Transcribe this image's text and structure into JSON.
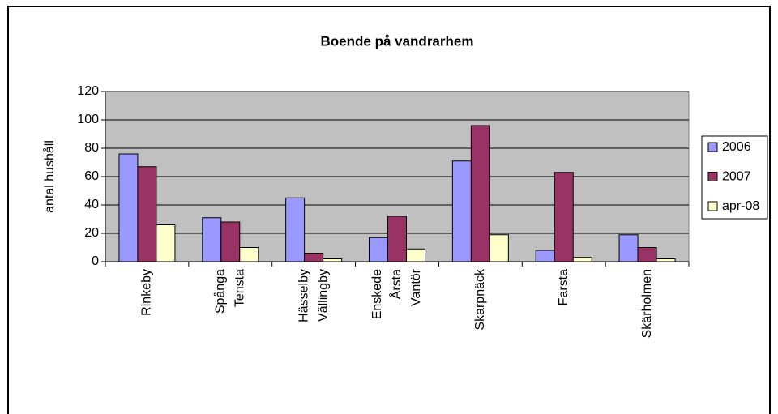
{
  "chart_data": {
    "type": "bar",
    "title": "Boende på vandrarhem",
    "y_label": "antal hushåll",
    "categories": [
      [
        "Rinkeby"
      ],
      [
        "Spånga",
        "Tensta"
      ],
      [
        "Hässelby",
        "Vällingby"
      ],
      [
        "Enskede",
        "Årsta",
        "Vantör"
      ],
      [
        "Skarpnäck"
      ],
      [
        "Farsta"
      ],
      [
        "Skärholmen"
      ]
    ],
    "series": [
      {
        "name": "2006",
        "color": "#9999ff",
        "values": [
          76,
          31,
          45,
          17,
          71,
          8,
          19
        ]
      },
      {
        "name": "2007",
        "color": "#993366",
        "values": [
          67,
          28,
          6,
          32,
          96,
          63,
          10
        ]
      },
      {
        "name": "apr-08",
        "color": "#ffffcc",
        "values": [
          26,
          10,
          2,
          9,
          19,
          3,
          2
        ]
      }
    ],
    "ylim": [
      0,
      120
    ],
    "yticks": [
      0,
      20,
      40,
      60,
      80,
      100,
      120
    ],
    "grid": true,
    "legend": "right"
  }
}
